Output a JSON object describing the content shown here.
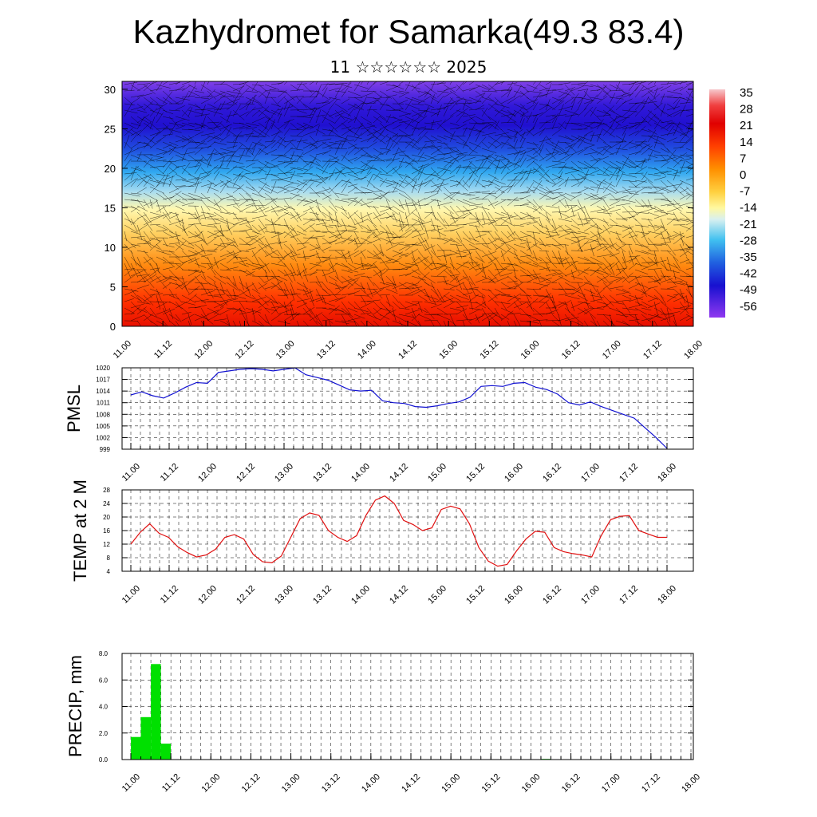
{
  "title": "Kazhydromet for Samarka(49.3 83.4)",
  "subtitle": "11 ☆☆☆☆☆☆ 2025",
  "colors": {
    "pmsl_line": "#1010d0",
    "temp_line": "#e01010",
    "precip_bar": "#00e000",
    "gradient_stops": [
      "#f0b8c0",
      "#e80000",
      "#ff4000",
      "#ff9000",
      "#ffe070",
      "#fffaa0",
      "#d8eef0",
      "#40c0f0",
      "#2860e0",
      "#2018d8",
      "#6020e8",
      "#9038f0"
    ]
  },
  "chart_data": [
    {
      "type": "heatmap",
      "title": "",
      "ylim": [
        0,
        31
      ],
      "y_ticks": [
        "0",
        "5",
        "10",
        "15",
        "20",
        "25",
        "30"
      ],
      "x_ticks": [
        "11.00",
        "11.12",
        "12.00",
        "12.12",
        "13.00",
        "13.12",
        "14.00",
        "14.12",
        "15.00",
        "15.12",
        "16.00",
        "16.12",
        "17.00",
        "17.12",
        "18.00"
      ],
      "colorbar_labels": [
        "35",
        "28",
        "21",
        "14",
        "7",
        "0",
        "-7",
        "-14",
        "-21",
        "-28",
        "-35",
        "-42",
        "-49",
        "-56"
      ],
      "overlay": "wind barbs"
    },
    {
      "type": "line",
      "ylabel": "PMSL",
      "ylim": [
        999,
        1020
      ],
      "y_ticks": [
        "1020",
        "1017",
        "1014",
        "1011",
        "1008",
        "1005",
        "1002",
        "999"
      ],
      "x_ticks": [
        "11.00",
        "11.12",
        "12.00",
        "12.12",
        "13.00",
        "13.12",
        "14.00",
        "14.12",
        "15.00",
        "15.12",
        "16.00",
        "16.12",
        "17.00",
        "17.12",
        "18.00"
      ],
      "values": [
        1013.0,
        1013.8,
        1012.8,
        1012.2,
        1013.5,
        1015.0,
        1016.2,
        1016.0,
        1018.8,
        1019.2,
        1019.6,
        1019.8,
        1019.6,
        1019.2,
        1019.6,
        1020.0,
        1018.2,
        1017.5,
        1016.8,
        1015.6,
        1014.3,
        1014.0,
        1014.2,
        1011.5,
        1011.0,
        1010.8,
        1010.0,
        1009.8,
        1010.2,
        1010.8,
        1011.2,
        1012.4,
        1015.2,
        1015.4,
        1015.2,
        1016.0,
        1016.2,
        1015.0,
        1014.4,
        1013.2,
        1011.0,
        1010.4,
        1011.2,
        1010.0,
        1009.0,
        1008.0,
        1007.0,
        1004.5,
        1002.0,
        999.2
      ]
    },
    {
      "type": "line",
      "ylabel": "TEMP at 2 M",
      "ylim": [
        4,
        28
      ],
      "y_ticks": [
        "28",
        "24",
        "20",
        "16",
        "12",
        "8",
        "4"
      ],
      "x_ticks": [
        "11.00",
        "11.12",
        "12.00",
        "12.12",
        "13.00",
        "13.12",
        "14.00",
        "14.12",
        "15.00",
        "15.12",
        "16.00",
        "16.12",
        "17.00",
        "17.12",
        "18.00"
      ],
      "values": [
        12.0,
        15.5,
        18.0,
        15.2,
        14.0,
        11.2,
        9.5,
        8.2,
        8.8,
        10.5,
        14.0,
        14.8,
        13.5,
        9.0,
        6.8,
        6.5,
        8.5,
        14.0,
        19.5,
        21.2,
        20.5,
        16.0,
        14.0,
        12.8,
        14.5,
        20.5,
        25.0,
        26.2,
        24.0,
        19.0,
        17.8,
        16.0,
        16.8,
        22.2,
        23.2,
        22.4,
        18.0,
        11.0,
        7.0,
        5.5,
        6.0,
        10.0,
        13.5,
        15.8,
        15.5,
        11.0,
        9.8,
        9.2,
        8.8,
        8.2,
        14.5,
        19.2,
        20.2,
        20.4,
        16.0,
        15.0,
        14.0,
        14.0
      ]
    },
    {
      "type": "bar",
      "ylabel": "PRECIP, mm",
      "ylim": [
        0,
        8
      ],
      "y_ticks": [
        "8.0",
        "6.0",
        "4.0",
        "2.0",
        "0.0"
      ],
      "x_ticks": [
        "11.00",
        "11.12",
        "12.00",
        "12.12",
        "13.00",
        "13.12",
        "14.00",
        "14.12",
        "15.00",
        "15.12",
        "16.00",
        "16.12",
        "17.00",
        "17.12",
        "18.00"
      ],
      "bars": [
        {
          "x": 0.5,
          "value": 1.7
        },
        {
          "x": 1.5,
          "value": 3.2
        },
        {
          "x": 2.5,
          "value": 7.2
        },
        {
          "x": 3.5,
          "value": 1.2
        },
        {
          "x": 41.5,
          "value": 0.05
        }
      ]
    }
  ]
}
